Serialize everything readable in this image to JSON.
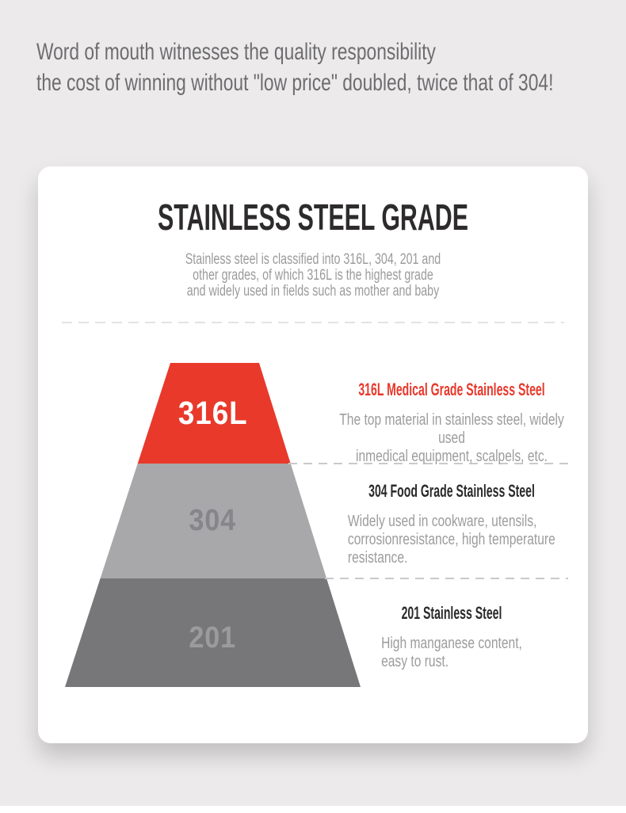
{
  "header": {
    "line1": "Word of mouth witnesses the quality responsibility",
    "line2": "the cost of winning without \"low price\" doubled, twice that of 304!"
  },
  "card": {
    "title": "STAINLESS STEEL GRADE",
    "subtitle_lines": [
      "Stainless steel is classified into 316L, 304, 201 and",
      "other grades, of which 316L is the highest grade",
      "and widely used in fields such as mother and baby"
    ],
    "sections": [
      {
        "heading": "316L Medical Grade Stainless Steel",
        "heading_color": "#e8382b",
        "body_lines": [
          "The top material in stainless steel, widely used",
          "inmedical equipment, scalpels, etc."
        ]
      },
      {
        "heading": "304 Food Grade Stainless Steel",
        "heading_color": "#2b292a",
        "body_lines": [
          "Widely used in cookware, utensils,",
          "corrosionresistance, high temperature",
          "resistance."
        ]
      },
      {
        "heading": "201 Stainless Steel",
        "heading_color": "#2b292a",
        "body_lines": [
          "High manganese content,",
          "easy to rust."
        ]
      }
    ]
  },
  "pyramid": {
    "tiers": [
      {
        "label": "316L",
        "fill": "#e8392b",
        "label_color": "#ffffff"
      },
      {
        "label": "304",
        "fill": "#a8a8aa",
        "label_color": "#86868a"
      },
      {
        "label": "201",
        "fill": "#77777a",
        "label_color": "#9b9b9e"
      }
    ]
  },
  "colors": {
    "page_bg": "#eceaeb",
    "card_bg": "#ffffff",
    "accent_red": "#e8392b",
    "header_text": "#6d6d6f",
    "body_text": "#9c9c9c",
    "dark_text": "#2d2b2c"
  }
}
